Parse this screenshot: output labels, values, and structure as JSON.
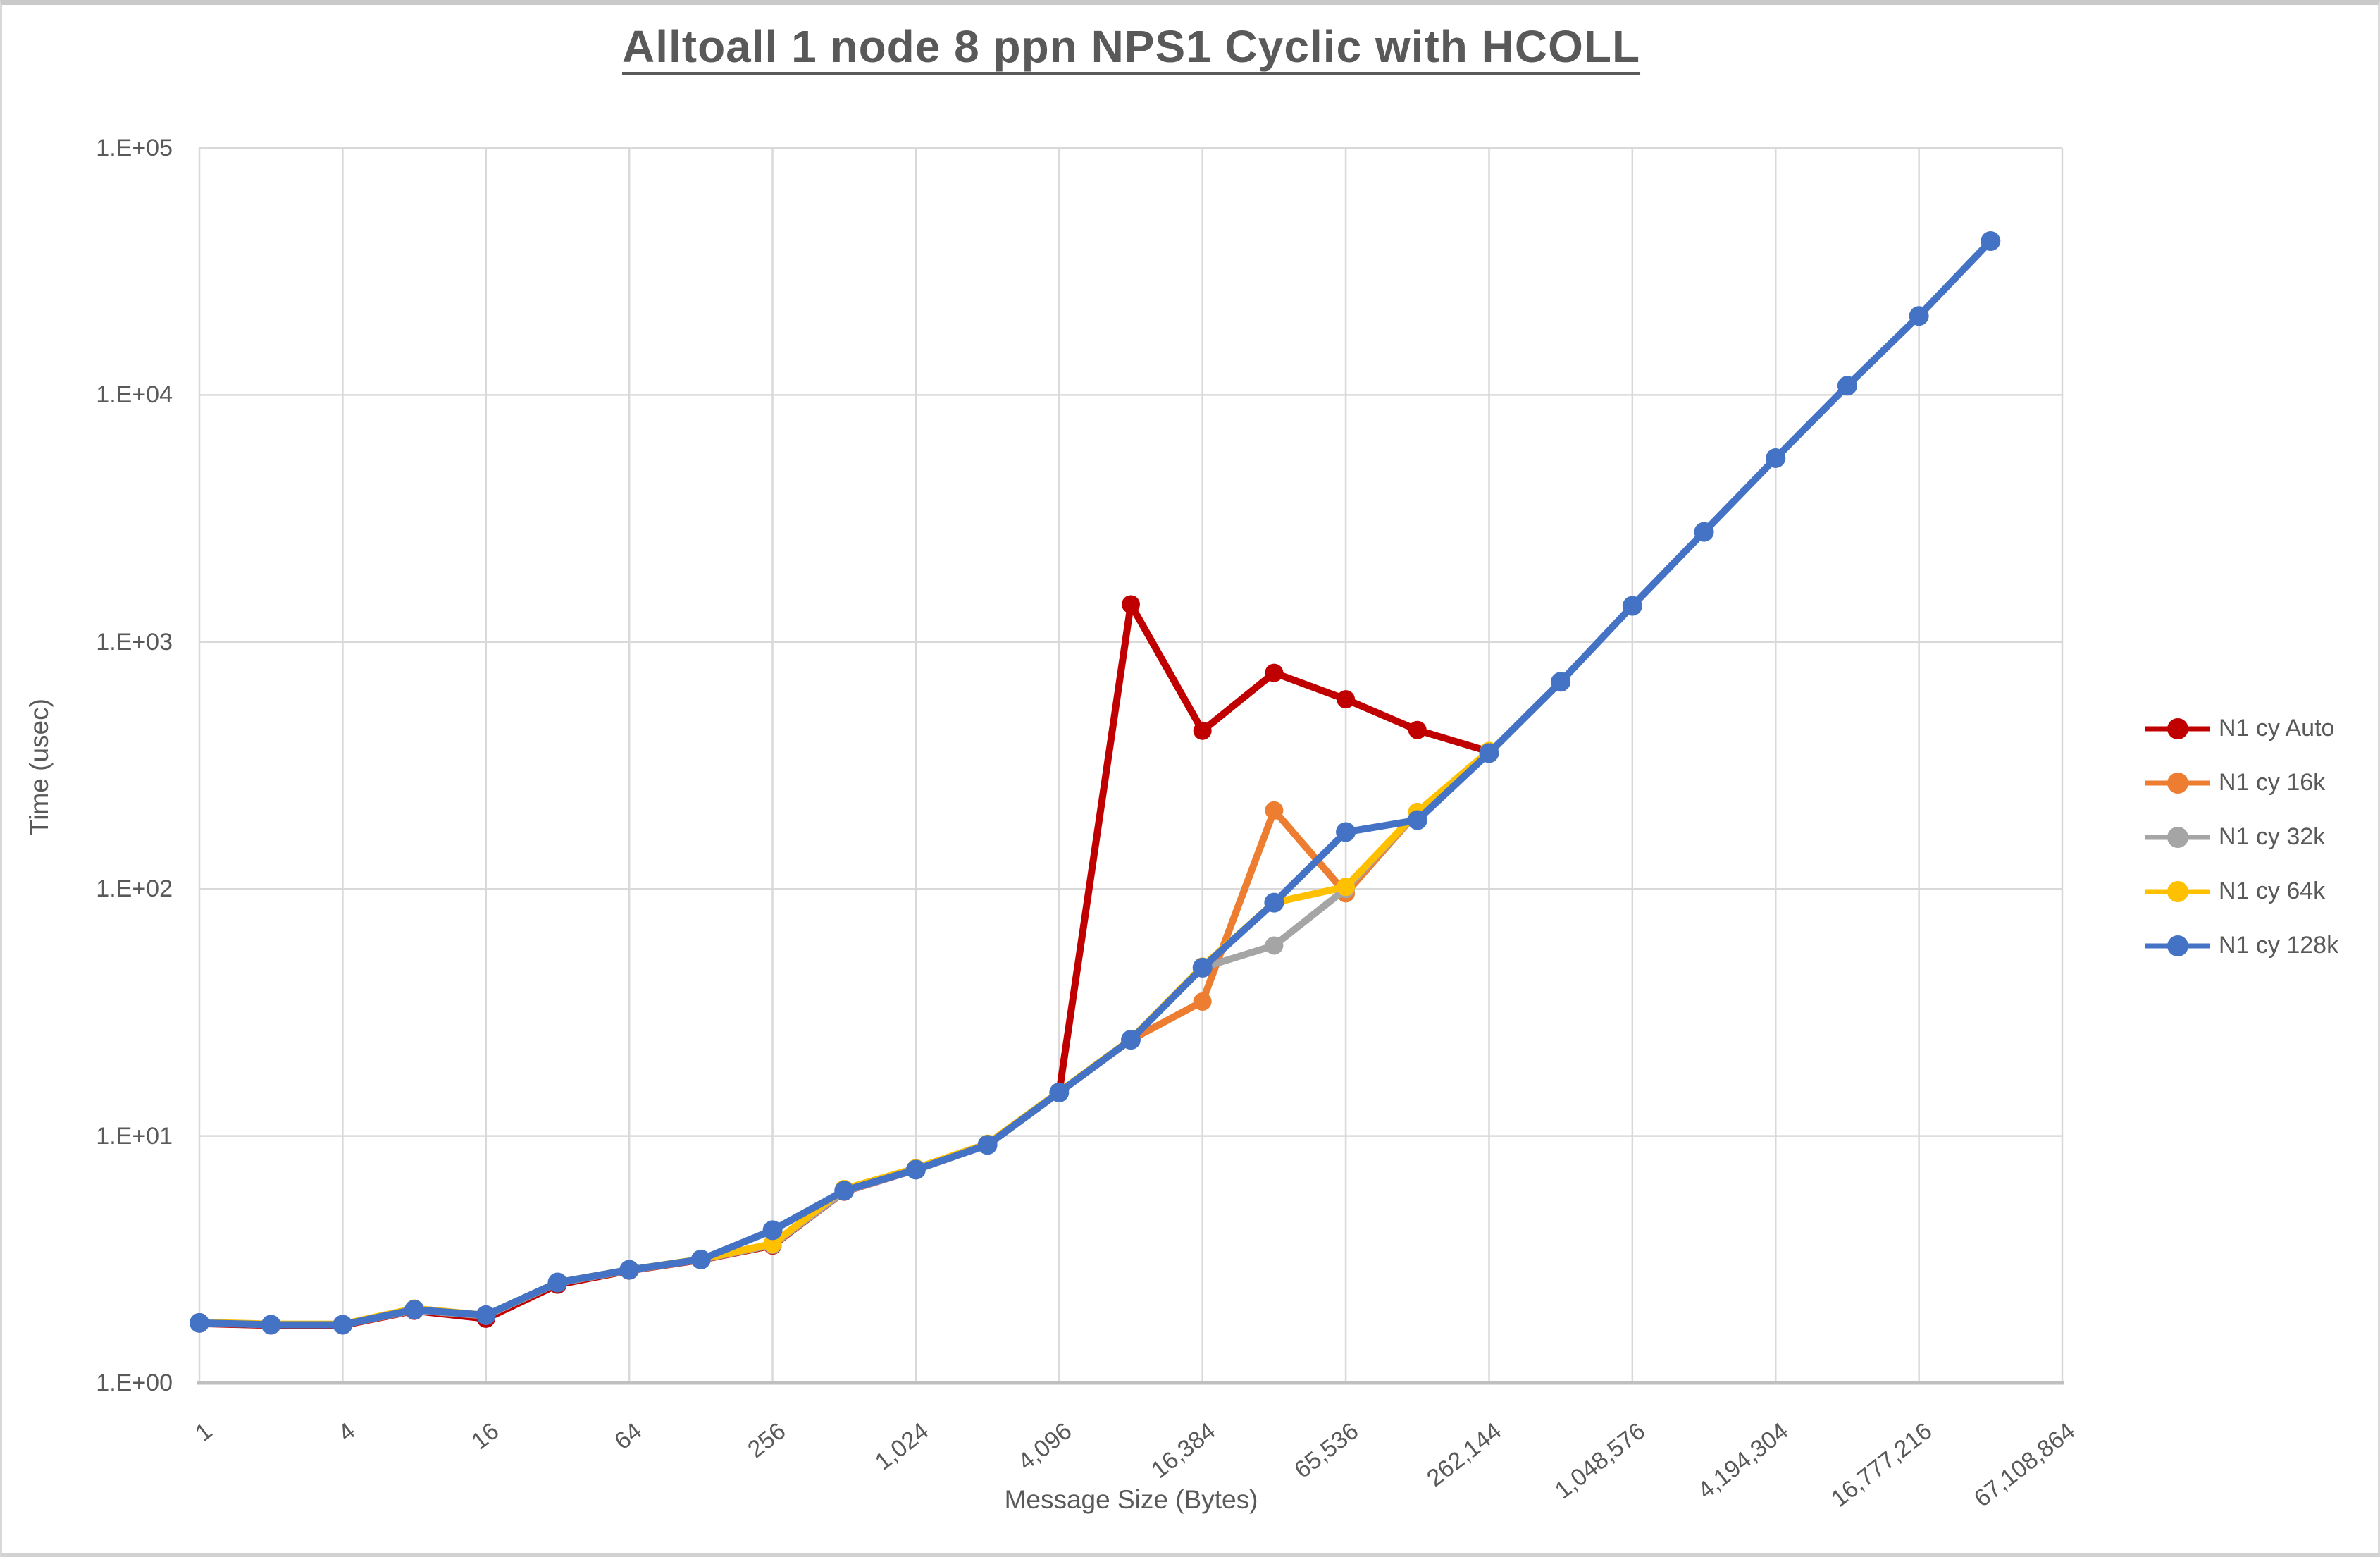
{
  "chart_data": {
    "type": "line",
    "title": "Alltoall 1 node 8 ppn NPS1 Cyclic with HCOLL",
    "xlabel": "Message Size (Bytes)",
    "ylabel": "Time (usec)",
    "x_scale": "log2",
    "y_scale": "log10",
    "xlim": [
      1,
      67108864
    ],
    "ylim": [
      1,
      100000
    ],
    "grid": true,
    "legend_position": "right",
    "x_tick_labels": [
      "1",
      "4",
      "16",
      "64",
      "256",
      "1,024",
      "4,096",
      "16,384",
      "65,536",
      "262,144",
      "1,048,576",
      "4,194,304",
      "16,777,216",
      "67,108,864"
    ],
    "y_tick_labels": [
      "1.E+00",
      "1.E+01",
      "1.E+02",
      "1.E+03",
      "1.E+04",
      "1.E+05"
    ],
    "series": [
      {
        "name": "N1 cy Auto",
        "color": "#C00000",
        "x": [
          1,
          2,
          4,
          8,
          16,
          32,
          64,
          128,
          256,
          512,
          1024,
          2048,
          4096,
          8192,
          16384,
          32768,
          65536,
          131072,
          262144
        ],
        "y": [
          1.74,
          1.71,
          1.71,
          1.96,
          1.82,
          2.5,
          2.85,
          3.15,
          3.6,
          5.95,
          7.3,
          9.2,
          15,
          1420,
          437,
          750,
          586,
          440,
          360
        ]
      },
      {
        "name": "N1 cy 16k",
        "color": "#ED7D31",
        "x": [
          1,
          2,
          4,
          8,
          16,
          32,
          64,
          128,
          256,
          512,
          1024,
          2048,
          4096,
          8192,
          16384,
          32768,
          65536,
          131072,
          262144
        ],
        "y": [
          1.75,
          1.72,
          1.72,
          1.97,
          1.87,
          2.54,
          2.86,
          3.16,
          3.62,
          5.97,
          7.3,
          9.2,
          15,
          24.5,
          35,
          208,
          96,
          205,
          360
        ]
      },
      {
        "name": "N1 cy 32k",
        "color": "#A5A5A5",
        "x": [
          1,
          2,
          4,
          8,
          16,
          32,
          64,
          128,
          256,
          512,
          1024,
          2048,
          4096,
          8192,
          16384,
          32768,
          65536,
          131072,
          262144
        ],
        "y": [
          1.75,
          1.72,
          1.72,
          1.97,
          1.87,
          2.54,
          2.86,
          3.16,
          3.63,
          5.97,
          7.3,
          9.2,
          15,
          24.5,
          48,
          59,
          100,
          205,
          360
        ]
      },
      {
        "name": "N1 cy 64k",
        "color": "#FFC000",
        "x": [
          1,
          2,
          4,
          8,
          16,
          32,
          64,
          128,
          256,
          512,
          1024,
          2048,
          4096,
          8192,
          16384,
          32768,
          65536,
          131072,
          262144
        ],
        "y": [
          1.76,
          1.73,
          1.73,
          2.0,
          1.88,
          2.55,
          2.87,
          3.17,
          3.66,
          6.1,
          7.4,
          9.3,
          15.1,
          24.6,
          48.5,
          88,
          102,
          205,
          362
        ]
      },
      {
        "name": "N1 cy 128k",
        "color": "#4472C4",
        "x": [
          1,
          2,
          4,
          8,
          16,
          32,
          64,
          128,
          256,
          512,
          1024,
          2048,
          4096,
          8192,
          16384,
          32768,
          65536,
          131072,
          262144,
          524288,
          1048576,
          2097152,
          4194304,
          8388608,
          16777216,
          33554432
        ],
        "y": [
          1.75,
          1.72,
          1.72,
          1.98,
          1.88,
          2.55,
          2.87,
          3.16,
          4.15,
          6.0,
          7.3,
          9.2,
          15,
          24.5,
          48,
          88,
          170,
          190,
          355,
          690,
          1400,
          2790,
          5550,
          10900,
          20900,
          42000
        ]
      }
    ],
    "gridline_color": "#D9D9D9",
    "axis_line_color": "#BFBFBF"
  }
}
